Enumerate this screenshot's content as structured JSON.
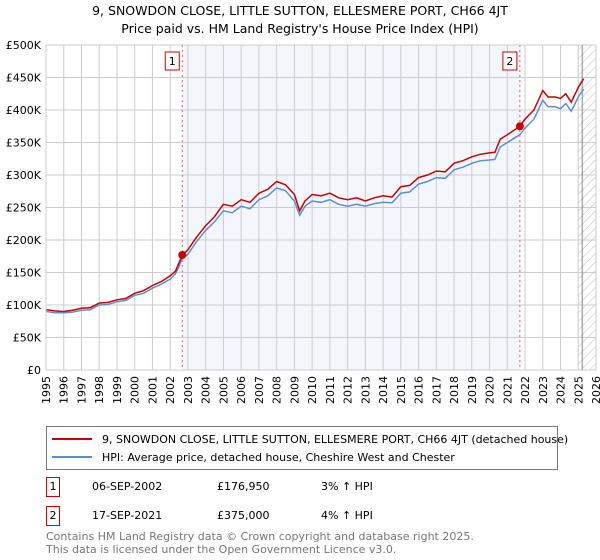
{
  "title_line1": "9, SNOWDON CLOSE, LITTLE SUTTON, ELLESMERE PORT, CH66 4JT",
  "title_line2": "Price paid vs. HM Land Registry's House Price Index (HPI)",
  "chart_data": {
    "type": "line",
    "title": "9, SNOWDON CLOSE, LITTLE SUTTON, ELLESMERE PORT, CH66 4JT — Price paid vs. HM Land Registry's House Price Index (HPI)",
    "xlabel": "",
    "ylabel": "",
    "xlim": [
      1995,
      2026
    ],
    "ylim": [
      0,
      500000
    ],
    "grid": true,
    "x_ticks": [
      "1995",
      "1996",
      "1997",
      "1998",
      "1999",
      "2000",
      "2001",
      "2002",
      "2003",
      "2004",
      "2005",
      "2006",
      "2007",
      "2008",
      "2009",
      "2010",
      "2011",
      "2012",
      "2013",
      "2014",
      "2015",
      "2016",
      "2017",
      "2018",
      "2019",
      "2020",
      "2021",
      "2022",
      "2023",
      "2024",
      "2025",
      "2026"
    ],
    "y_ticks": [
      {
        "value": 0,
        "label": "£0"
      },
      {
        "value": 50000,
        "label": "£50K"
      },
      {
        "value": 100000,
        "label": "£100K"
      },
      {
        "value": 150000,
        "label": "£150K"
      },
      {
        "value": 200000,
        "label": "£200K"
      },
      {
        "value": 250000,
        "label": "£250K"
      },
      {
        "value": 300000,
        "label": "£300K"
      },
      {
        "value": 350000,
        "label": "£350K"
      },
      {
        "value": 400000,
        "label": "£400K"
      },
      {
        "value": 450000,
        "label": "£450K"
      },
      {
        "value": 500000,
        "label": "£500K"
      }
    ],
    "shaded_range": [
      2002.68,
      2021.71
    ],
    "forecast_hatch_from": 2025.0,
    "series": [
      {
        "name": "9, SNOWDON CLOSE, LITTLE SUTTON, ELLESMERE PORT, CH66 4JT (detached house)",
        "color": "#cc0000",
        "x": [
          1995,
          1995.5,
          1996,
          1996.5,
          1997,
          1997.5,
          1998,
          1998.5,
          1999,
          1999.5,
          2000,
          2000.5,
          2001,
          2001.5,
          2002,
          2002.3,
          2002.68,
          2003,
          2003.5,
          2004,
          2004.5,
          2005,
          2005.5,
          2006,
          2006.5,
          2007,
          2007.5,
          2008,
          2008.5,
          2009,
          2009.3,
          2009.6,
          2010,
          2010.5,
          2011,
          2011.5,
          2012,
          2012.5,
          2013,
          2013.5,
          2014,
          2014.5,
          2015,
          2015.5,
          2016,
          2016.5,
          2017,
          2017.5,
          2018,
          2018.5,
          2019,
          2019.5,
          2020,
          2020.3,
          2020.6,
          2021,
          2021.71,
          2022,
          2022.5,
          2023,
          2023.3,
          2023.7,
          2024,
          2024.3,
          2024.6,
          2025,
          2025.3
        ],
        "y": [
          93000,
          91000,
          90000,
          92000,
          95000,
          96000,
          103000,
          104000,
          108000,
          110000,
          118000,
          122000,
          130000,
          136000,
          145000,
          152000,
          176950,
          185000,
          205000,
          222000,
          236000,
          255000,
          252000,
          262000,
          258000,
          272000,
          278000,
          290000,
          285000,
          270000,
          245000,
          260000,
          270000,
          268000,
          272000,
          265000,
          262000,
          265000,
          260000,
          265000,
          268000,
          266000,
          282000,
          284000,
          296000,
          300000,
          306000,
          305000,
          318000,
          322000,
          328000,
          332000,
          334000,
          335000,
          355000,
          362000,
          375000,
          386000,
          400000,
          430000,
          420000,
          420000,
          418000,
          425000,
          412000,
          435000,
          448000
        ]
      },
      {
        "name": "HPI: Average price, detached house, Cheshire West and Chester",
        "color": "#5b8fd4",
        "x": [
          1995,
          1995.5,
          1996,
          1996.5,
          1997,
          1997.5,
          1998,
          1998.5,
          1999,
          1999.5,
          2000,
          2000.5,
          2001,
          2001.5,
          2002,
          2002.3,
          2002.68,
          2003,
          2003.5,
          2004,
          2004.5,
          2005,
          2005.5,
          2006,
          2006.5,
          2007,
          2007.5,
          2008,
          2008.5,
          2009,
          2009.3,
          2009.6,
          2010,
          2010.5,
          2011,
          2011.5,
          2012,
          2012.5,
          2013,
          2013.5,
          2014,
          2014.5,
          2015,
          2015.5,
          2016,
          2016.5,
          2017,
          2017.5,
          2018,
          2018.5,
          2019,
          2019.5,
          2020,
          2020.3,
          2020.6,
          2021,
          2021.71,
          2022,
          2022.5,
          2023,
          2023.3,
          2023.7,
          2024,
          2024.3,
          2024.6,
          2025,
          2025.3
        ],
        "y": [
          90000,
          88000,
          88000,
          89000,
          92000,
          93000,
          100000,
          101000,
          105000,
          107000,
          115000,
          118000,
          126000,
          132000,
          140000,
          148000,
          171000,
          178000,
          198000,
          215000,
          228000,
          245000,
          242000,
          252000,
          248000,
          262000,
          268000,
          280000,
          276000,
          260000,
          238000,
          252000,
          260000,
          258000,
          262000,
          255000,
          252000,
          255000,
          252000,
          256000,
          258000,
          257000,
          272000,
          274000,
          286000,
          290000,
          296000,
          295000,
          308000,
          312000,
          318000,
          322000,
          323000,
          324000,
          343000,
          350000,
          362000,
          372000,
          386000,
          415000,
          405000,
          405000,
          402000,
          410000,
          398000,
          420000,
          432000
        ]
      }
    ],
    "annotations": [
      {
        "label": "1",
        "x": 2002.68,
        "y": 176950
      },
      {
        "label": "2",
        "x": 2021.71,
        "y": 375000
      }
    ]
  },
  "legend": {
    "items": [
      {
        "label": "9, SNOWDON CLOSE, LITTLE SUTTON, ELLESMERE PORT, CH66 4JT (detached house)",
        "color": "#cc0000"
      },
      {
        "label": "HPI: Average price, detached house, Cheshire West and Chester",
        "color": "#5b8fd4"
      }
    ]
  },
  "transactions": [
    {
      "num": "1",
      "date": "06-SEP-2002",
      "price": "£176,950",
      "hpi": "3% ↑ HPI"
    },
    {
      "num": "2",
      "date": "17-SEP-2021",
      "price": "£375,000",
      "hpi": "4% ↑ HPI"
    }
  ],
  "footer": {
    "line1": "Contains HM Land Registry data © Crown copyright and database right 2025.",
    "line2": "This data is licensed under the Open Government Licence v3.0."
  }
}
